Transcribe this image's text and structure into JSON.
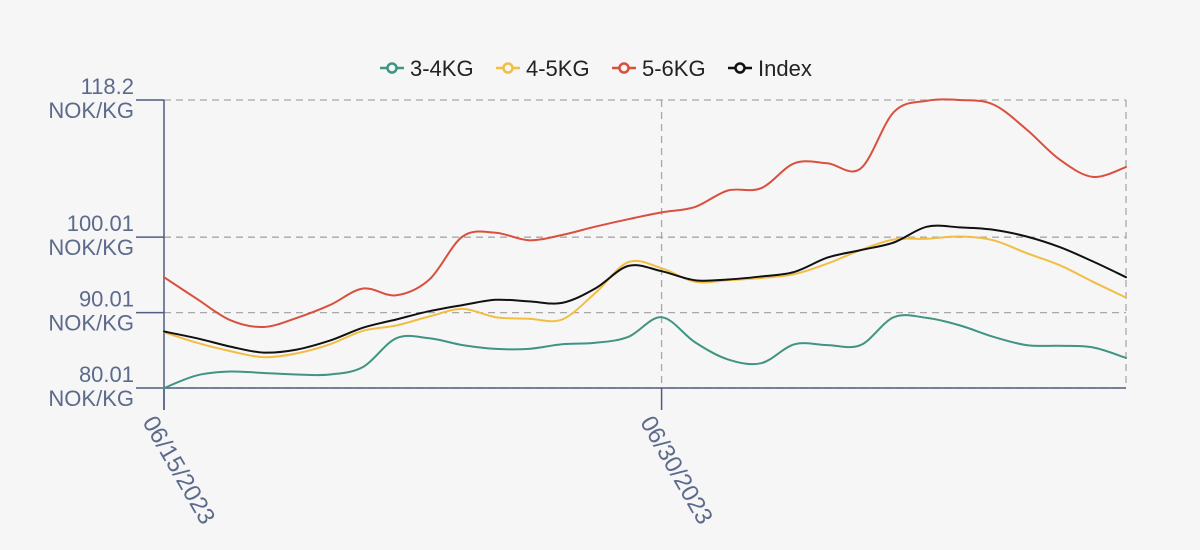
{
  "chart_data": {
    "type": "line",
    "title": "",
    "xlabel": "",
    "ylabel": "",
    "unit": "NOK/KG",
    "ylim": [
      80.01,
      118.2
    ],
    "y_ticks": [
      {
        "value": 118.2,
        "label": "118.2"
      },
      {
        "value": 100.01,
        "label": "100.01"
      },
      {
        "value": 90.01,
        "label": "90.01"
      },
      {
        "value": 80.01,
        "label": "80.01"
      }
    ],
    "x_range": [
      "2023-06-15",
      "2023-07-14"
    ],
    "x_ticks": [
      {
        "date": "2023-06-15",
        "label": "06/15/2023"
      },
      {
        "date": "2023-06-30",
        "label": "06/30/2023"
      }
    ],
    "grid": true,
    "legend_position": "top-center",
    "x": [
      "2023-06-15",
      "2023-06-16",
      "2023-06-17",
      "2023-06-18",
      "2023-06-19",
      "2023-06-20",
      "2023-06-21",
      "2023-06-22",
      "2023-06-23",
      "2023-06-24",
      "2023-06-25",
      "2023-06-26",
      "2023-06-27",
      "2023-06-28",
      "2023-06-29",
      "2023-06-30",
      "2023-07-01",
      "2023-07-02",
      "2023-07-03",
      "2023-07-04",
      "2023-07-05",
      "2023-07-06",
      "2023-07-07",
      "2023-07-08",
      "2023-07-09",
      "2023-07-10",
      "2023-07-11",
      "2023-07-12",
      "2023-07-13",
      "2023-07-14"
    ],
    "series": [
      {
        "name": "3-4KG",
        "color": "#3f9482",
        "values": [
          80.0,
          81.7,
          82.2,
          82.0,
          81.8,
          81.8,
          82.8,
          86.6,
          86.6,
          85.7,
          85.2,
          85.2,
          85.8,
          86.0,
          86.8,
          89.4,
          86.1,
          83.8,
          83.3,
          85.8,
          85.7,
          85.7,
          89.4,
          89.3,
          88.3,
          86.8,
          85.7,
          85.6,
          85.4,
          84.0
        ]
      },
      {
        "name": "4-5KG",
        "color": "#f1be42",
        "values": [
          87.4,
          86.0,
          84.9,
          84.1,
          84.6,
          85.8,
          87.6,
          88.3,
          89.5,
          90.5,
          89.4,
          89.2,
          89.1,
          92.6,
          96.7,
          95.9,
          94.1,
          94.3,
          94.6,
          95.1,
          96.5,
          98.3,
          99.7,
          99.8,
          100.1,
          99.6,
          97.9,
          96.3,
          94.1,
          92.0
        ]
      },
      {
        "name": "5-6KG",
        "color": "#d9503f",
        "values": [
          94.7,
          91.8,
          89.0,
          88.1,
          89.3,
          91.0,
          93.2,
          92.3,
          94.4,
          100.1,
          100.6,
          99.6,
          100.3,
          101.4,
          102.4,
          103.3,
          104.0,
          106.2,
          106.5,
          109.8,
          109.8,
          109.1,
          116.6,
          118.1,
          118.2,
          117.6,
          114.3,
          110.3,
          108.0,
          109.3
        ]
      },
      {
        "name": "Index",
        "color": "#111111",
        "values": [
          87.5,
          86.6,
          85.5,
          84.7,
          85.1,
          86.3,
          88.0,
          89.1,
          90.2,
          91.0,
          91.7,
          91.5,
          91.3,
          93.2,
          96.2,
          95.5,
          94.3,
          94.4,
          94.8,
          95.4,
          97.3,
          98.3,
          99.3,
          101.4,
          101.3,
          101.0,
          100.1,
          98.7,
          96.8,
          94.7
        ]
      }
    ]
  }
}
